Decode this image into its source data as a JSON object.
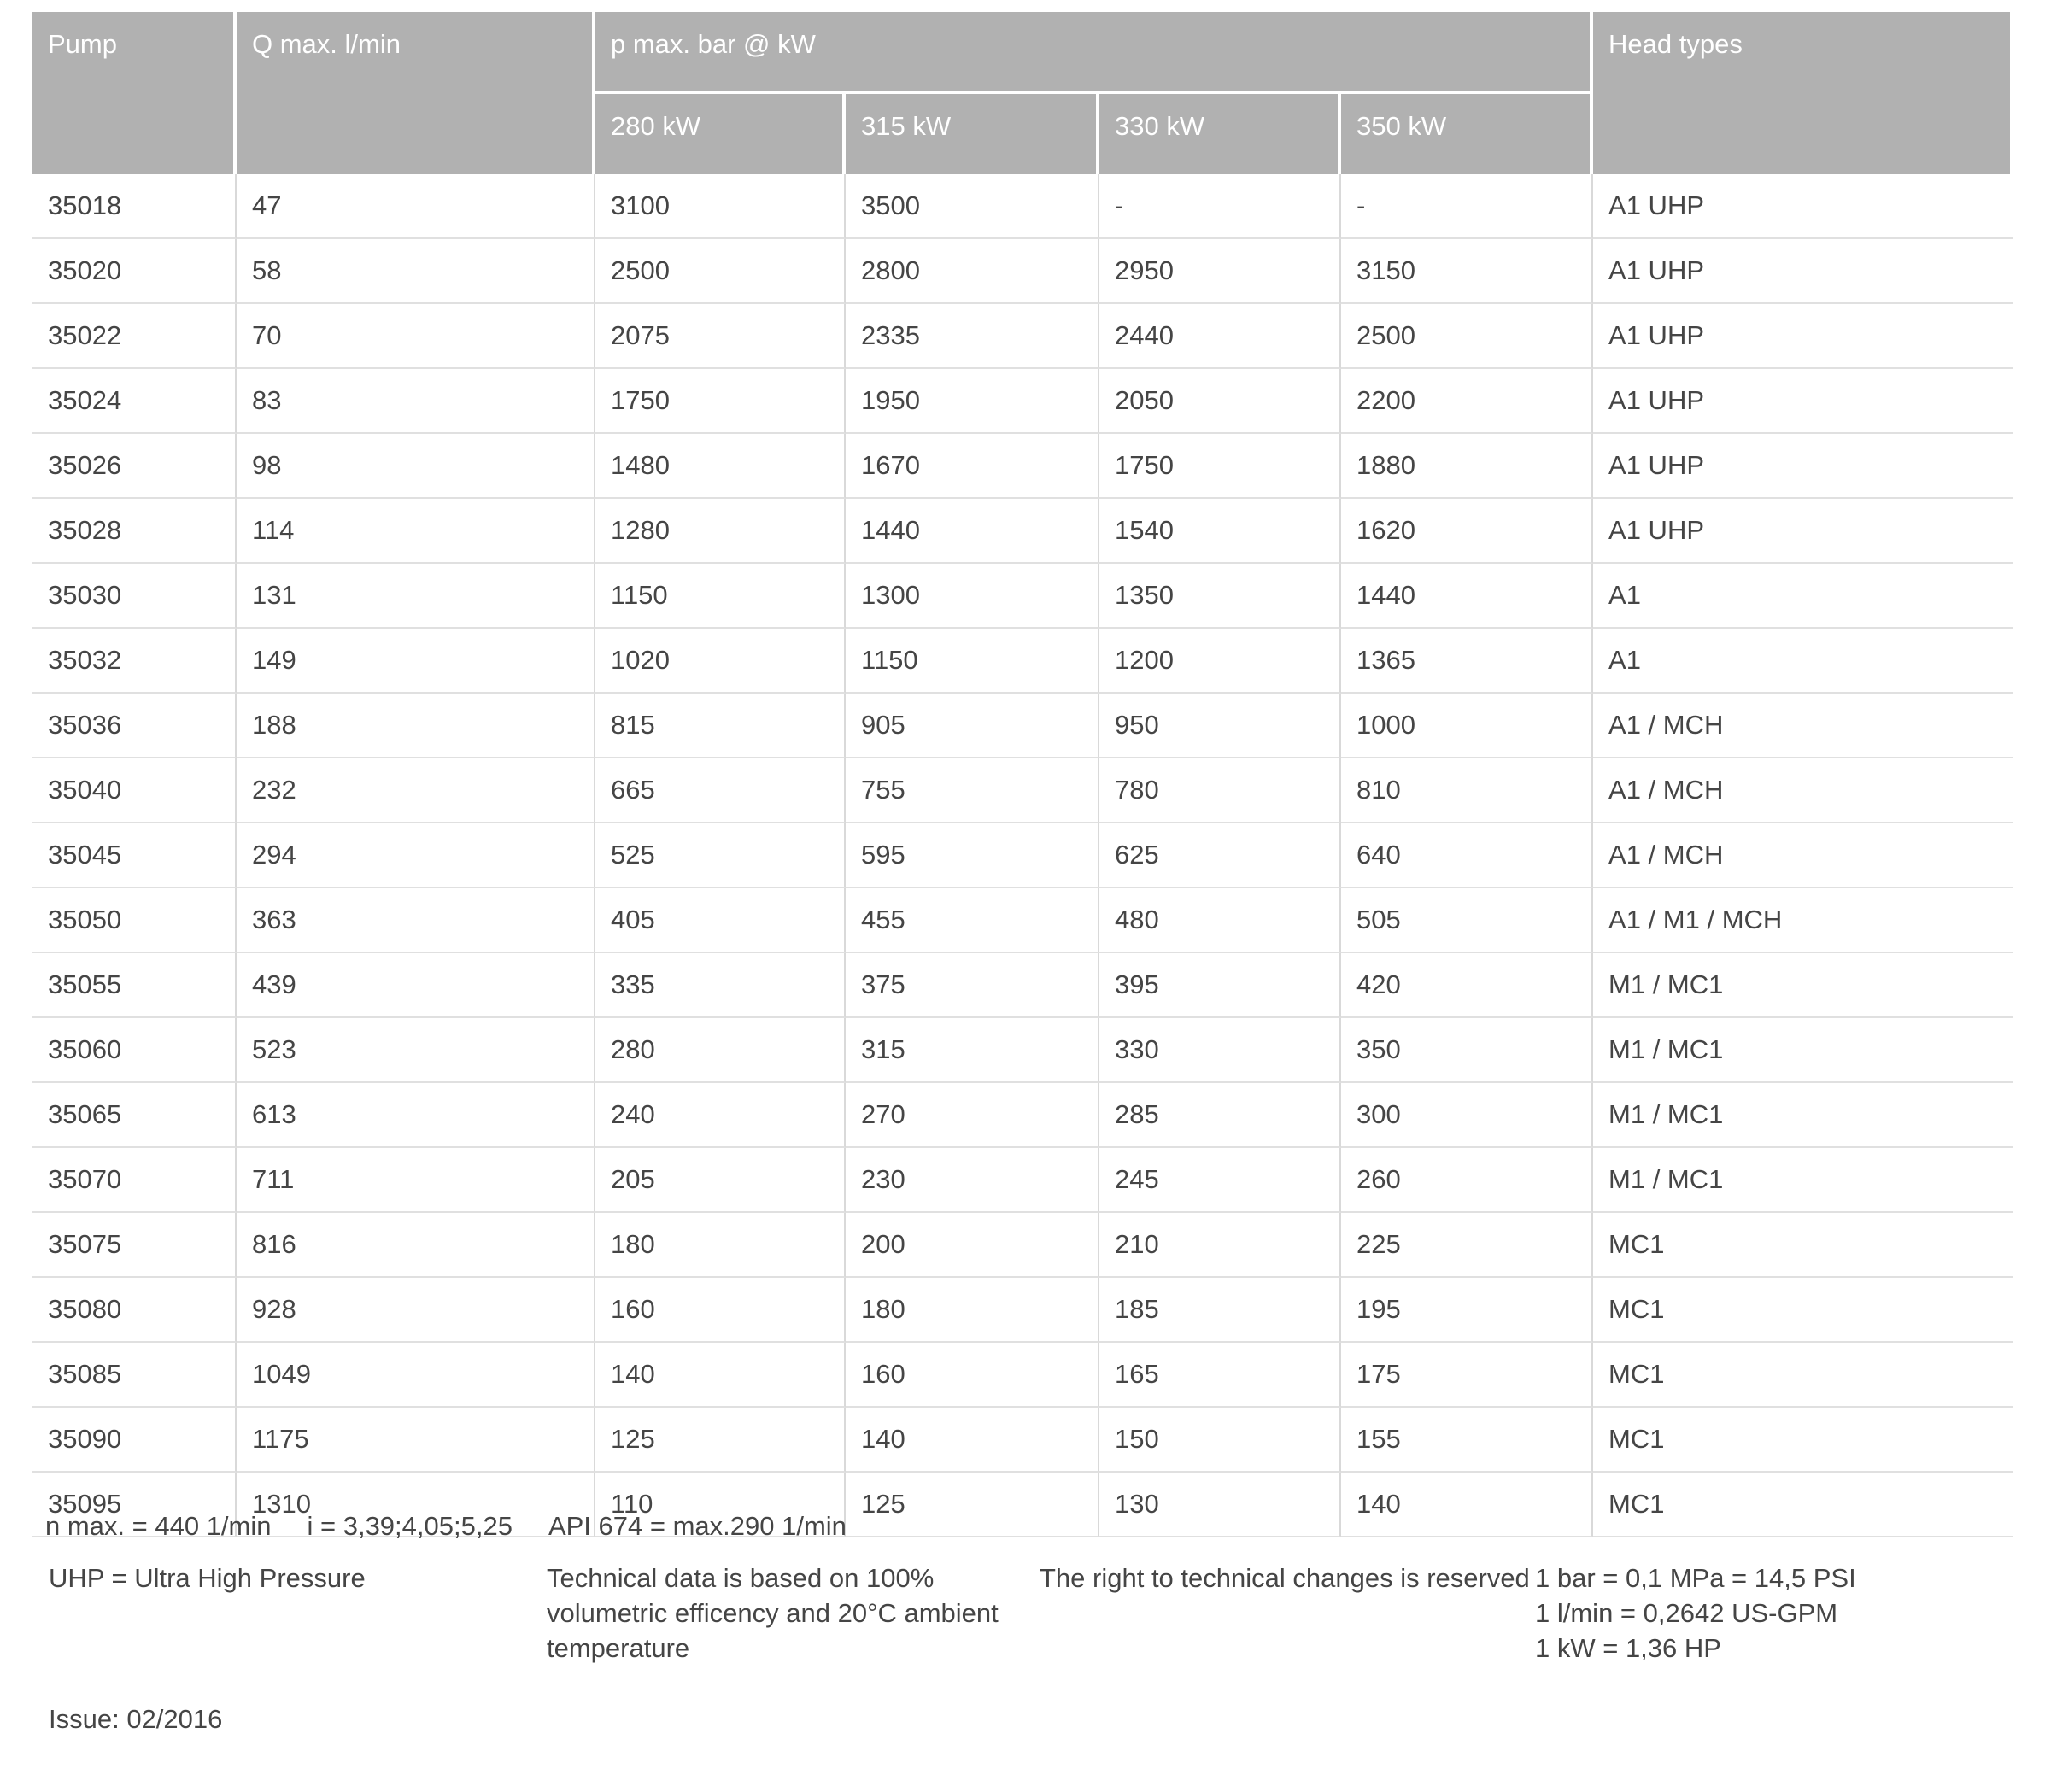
{
  "table": {
    "column_keys": [
      "pump",
      "q_max_l_min",
      "p_280kw",
      "p_315kw",
      "p_330kw",
      "p_350kw",
      "head_types"
    ],
    "header": {
      "pump": "Pump",
      "q_max": "Q max. l/min",
      "p_max_group": "p max. bar @ kW",
      "kw_280": "280 kW",
      "kw_315": "315 kW",
      "kw_330": "330 kW",
      "kw_350": "350 kW",
      "head_types": "Head types"
    },
    "rows": [
      [
        "35018",
        "47",
        "3100",
        "3500",
        "-",
        "-",
        "A1 UHP"
      ],
      [
        "35020",
        "58",
        "2500",
        "2800",
        "2950",
        "3150",
        "A1 UHP"
      ],
      [
        "35022",
        "70",
        "2075",
        "2335",
        "2440",
        "2500",
        "A1 UHP"
      ],
      [
        "35024",
        "83",
        "1750",
        "1950",
        "2050",
        "2200",
        "A1 UHP"
      ],
      [
        "35026",
        "98",
        "1480",
        "1670",
        "1750",
        "1880",
        "A1 UHP"
      ],
      [
        "35028",
        "114",
        "1280",
        "1440",
        "1540",
        "1620",
        "A1 UHP"
      ],
      [
        "35030",
        "131",
        "1150",
        "1300",
        "1350",
        "1440",
        "A1"
      ],
      [
        "35032",
        "149",
        "1020",
        "1150",
        "1200",
        "1365",
        "A1"
      ],
      [
        "35036",
        "188",
        "815",
        "905",
        "950",
        "1000",
        "A1 / MCH"
      ],
      [
        "35040",
        "232",
        "665",
        "755",
        "780",
        "810",
        "A1 / MCH"
      ],
      [
        "35045",
        "294",
        "525",
        "595",
        "625",
        "640",
        "A1 / MCH"
      ],
      [
        "35050",
        "363",
        "405",
        "455",
        "480",
        "505",
        "A1 / M1 / MCH"
      ],
      [
        "35055",
        "439",
        "335",
        "375",
        "395",
        "420",
        "M1 / MC1"
      ],
      [
        "35060",
        "523",
        "280",
        "315",
        "330",
        "350",
        "M1 / MC1"
      ],
      [
        "35065",
        "613",
        "240",
        "270",
        "285",
        "300",
        "M1 / MC1"
      ],
      [
        "35070",
        "711",
        "205",
        "230",
        "245",
        "260",
        "M1 / MC1"
      ],
      [
        "35075",
        "816",
        "180",
        "200",
        "210",
        "225",
        "MC1"
      ],
      [
        "35080",
        "928",
        "160",
        "180",
        "185",
        "195",
        "MC1"
      ],
      [
        "35085",
        "1049",
        "140",
        "160",
        "165",
        "175",
        "MC1"
      ],
      [
        "35090",
        "1175",
        "125",
        "140",
        "150",
        "155",
        "MC1"
      ],
      [
        "35095",
        "1310",
        "110",
        "125",
        "130",
        "140",
        "MC1"
      ]
    ]
  },
  "footnotes": {
    "line1": [
      "n max. = 440 1/min",
      "i = 3,39;4,05;5,25",
      "API 674 = max.290 1/min"
    ],
    "uhp": "UHP = Ultra High Pressure",
    "technical_lines": [
      "Technical data is based on 100%",
      "volumetric efficency and 20°C ambient",
      "temperature"
    ],
    "rights": "The right to technical changes is reserved",
    "conversions": [
      "1 bar = 0,1 MPa = 14,5 PSI",
      "1 l/min = 0,2642 US-GPM",
      "1 kW = 1,36 HP"
    ],
    "issue": "Issue: 02/2016"
  },
  "colors": {
    "header_bg": "#b1b1b1",
    "header_text": "#ffffff",
    "body_text": "#454545",
    "row_line": "#e0e0e0",
    "col_line": "#d9d9d9"
  }
}
